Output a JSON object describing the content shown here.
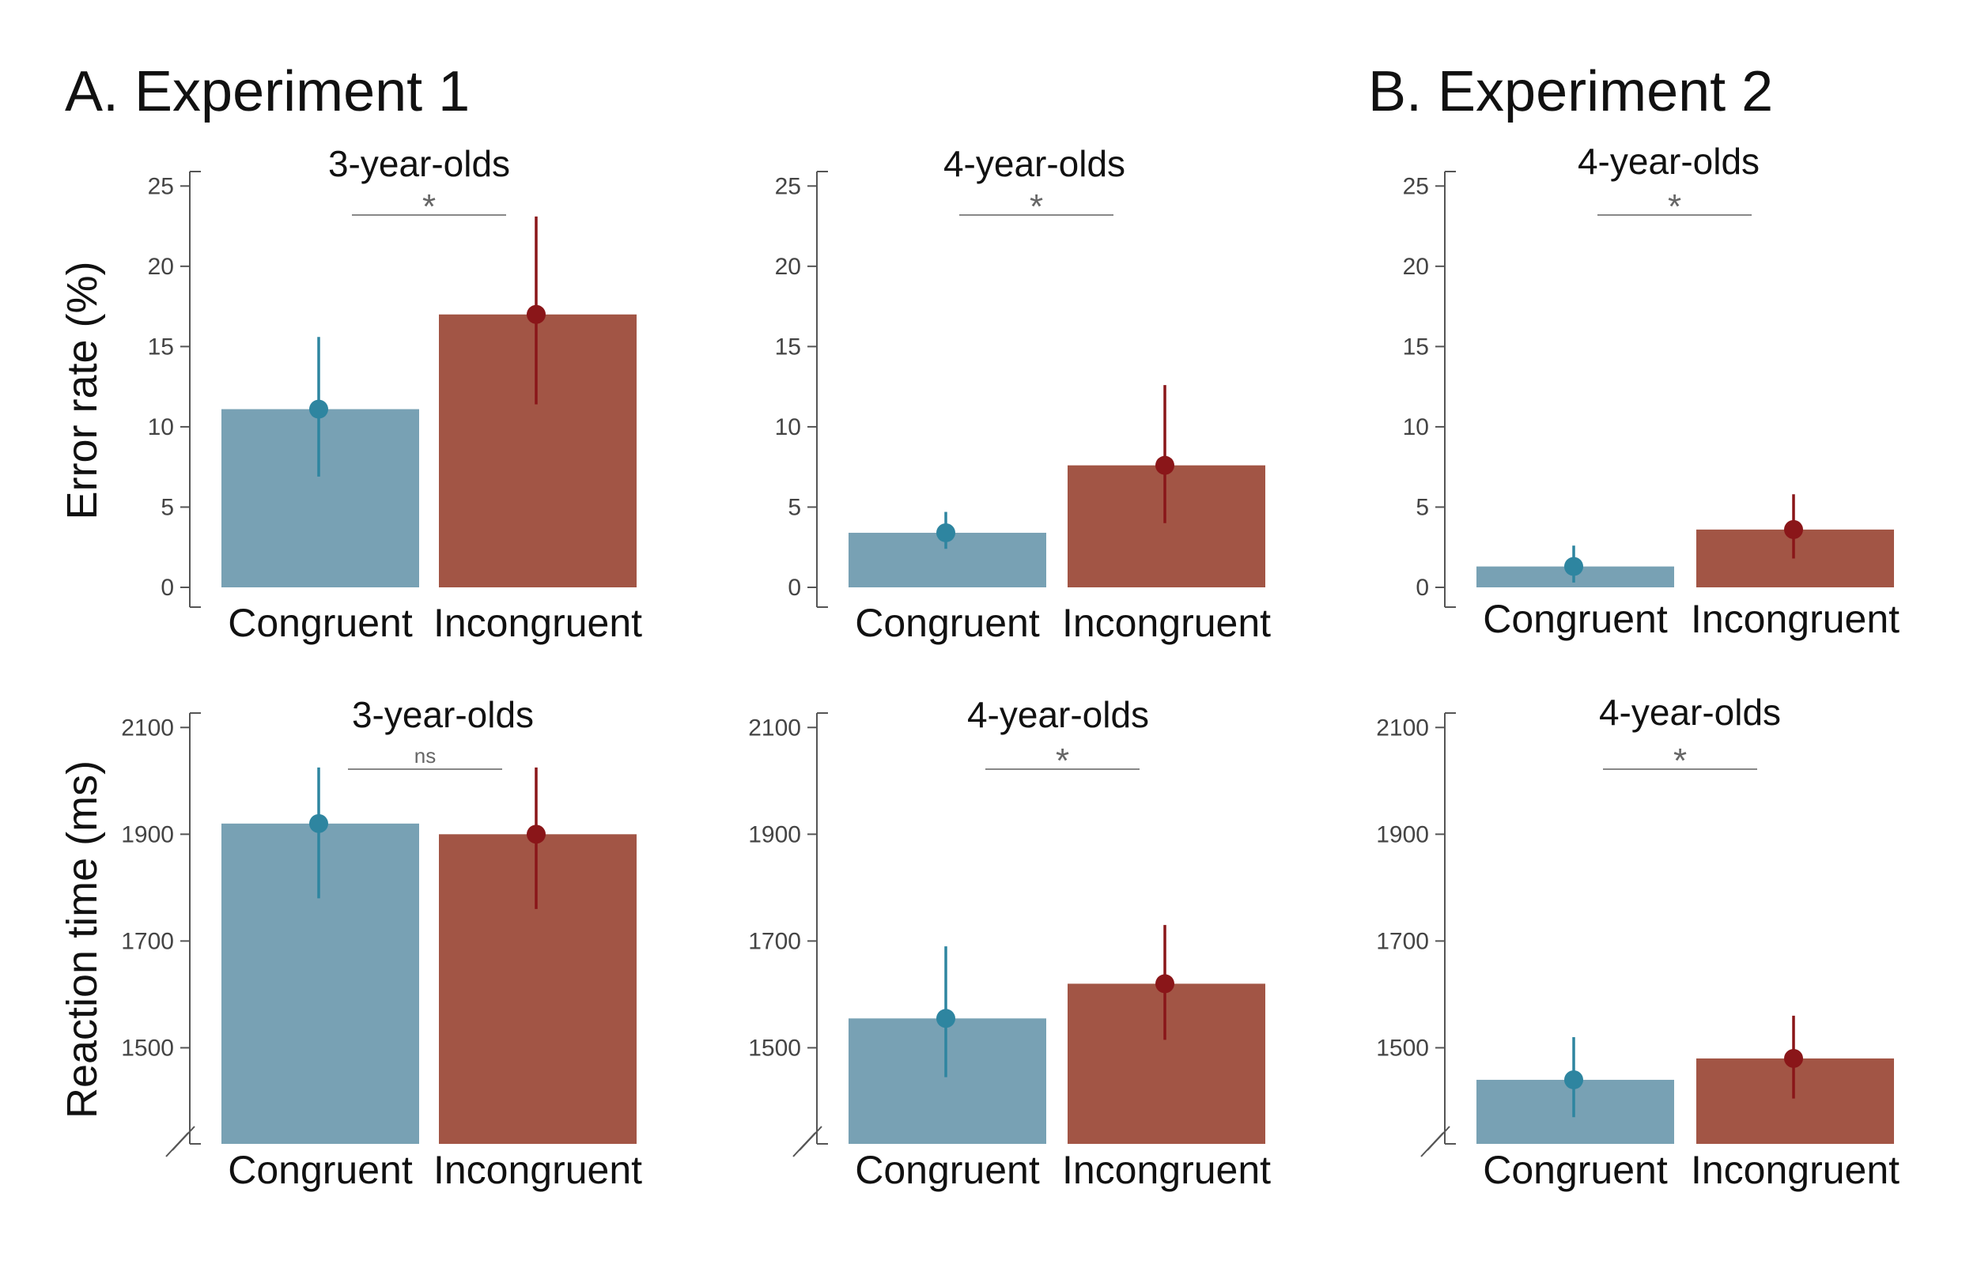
{
  "sections": [
    {
      "label": "A. Experiment 1"
    },
    {
      "label": "B. Experiment 2"
    }
  ],
  "colors": {
    "congruent_bar": "#78a1b4",
    "incongruent_bar": "#a25545",
    "congruent_point": "#2e85a0",
    "incongruent_point": "#8a1619"
  },
  "chart_data": [
    {
      "type": "bar",
      "title": "3-year-olds",
      "ylabel": "Error rate (%)",
      "categories": [
        "Congruent",
        "Incongruent"
      ],
      "values": [
        11.1,
        17.0
      ],
      "error_low": [
        6.9,
        11.4
      ],
      "error_high": [
        15.6,
        23.1
      ],
      "ylim": [
        0,
        26
      ],
      "yticks": [
        "0",
        "5",
        "10",
        "15",
        "20",
        "25"
      ],
      "significance": "*",
      "grid": false
    },
    {
      "type": "bar",
      "title": "4-year-olds",
      "ylabel": "",
      "categories": [
        "Congruent",
        "Incongruent"
      ],
      "values": [
        3.4,
        7.6
      ],
      "error_low": [
        2.4,
        4.0
      ],
      "error_high": [
        4.7,
        12.6
      ],
      "ylim": [
        0,
        26
      ],
      "yticks": [
        "0",
        "5",
        "10",
        "15",
        "20",
        "25"
      ],
      "significance": "*",
      "grid": false
    },
    {
      "type": "bar",
      "title": "4-year-olds",
      "ylabel": "",
      "categories": [
        "Congruent",
        "Incongruent"
      ],
      "values": [
        1.3,
        3.6
      ],
      "error_low": [
        0.3,
        1.8
      ],
      "error_high": [
        2.6,
        5.8
      ],
      "ylim": [
        0,
        26
      ],
      "yticks": [
        "0",
        "5",
        "10",
        "15",
        "20",
        "25"
      ],
      "significance": "*",
      "grid": false
    },
    {
      "type": "bar",
      "title": "3-year-olds",
      "ylabel": "Reaction time (ms)",
      "categories": [
        "Congruent",
        "Incongruent"
      ],
      "values": [
        1920,
        1900
      ],
      "error_low": [
        1780,
        1760
      ],
      "error_high": [
        2025,
        2025
      ],
      "ylim": [
        1320,
        2130
      ],
      "yticks": [
        "1500",
        "1700",
        "1900",
        "2100"
      ],
      "axis_break": true,
      "significance": "ns",
      "grid": false
    },
    {
      "type": "bar",
      "title": "4-year-olds",
      "ylabel": "",
      "categories": [
        "Congruent",
        "Incongruent"
      ],
      "values": [
        1555,
        1620
      ],
      "error_low": [
        1445,
        1515
      ],
      "error_high": [
        1690,
        1730
      ],
      "ylim": [
        1320,
        2130
      ],
      "yticks": [
        "1500",
        "1700",
        "1900",
        "2100"
      ],
      "axis_break": true,
      "significance": "*",
      "grid": false
    },
    {
      "type": "bar",
      "title": "4-year-olds",
      "ylabel": "",
      "categories": [
        "Congruent",
        "Incongruent"
      ],
      "values": [
        1440,
        1480
      ],
      "error_low": [
        1370,
        1405
      ],
      "error_high": [
        1520,
        1560
      ],
      "ylim": [
        1320,
        2130
      ],
      "yticks": [
        "1500",
        "1700",
        "1900",
        "2100"
      ],
      "axis_break": true,
      "significance": "*",
      "grid": false
    }
  ]
}
